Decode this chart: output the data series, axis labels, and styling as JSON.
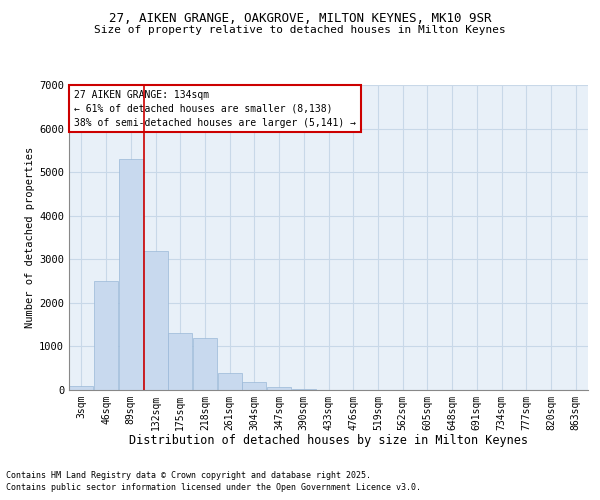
{
  "title1": "27, AIKEN GRANGE, OAKGROVE, MILTON KEYNES, MK10 9SR",
  "title2": "Size of property relative to detached houses in Milton Keynes",
  "xlabel": "Distribution of detached houses by size in Milton Keynes",
  "ylabel": "Number of detached properties",
  "bar_color": "#c8d9ee",
  "bar_edge_color": "#9ab8d8",
  "grid_color": "#c8d8e8",
  "background_color": "#e8f0f8",
  "annotation_box_color": "#cc0000",
  "vline_color": "#cc0000",
  "bins": [
    "3sqm",
    "46sqm",
    "89sqm",
    "132sqm",
    "175sqm",
    "218sqm",
    "261sqm",
    "304sqm",
    "347sqm",
    "390sqm",
    "433sqm",
    "476sqm",
    "519sqm",
    "562sqm",
    "605sqm",
    "648sqm",
    "691sqm",
    "734sqm",
    "777sqm",
    "820sqm",
    "863sqm"
  ],
  "bin_edges": [
    3,
    46,
    89,
    132,
    175,
    218,
    261,
    304,
    347,
    390,
    433,
    476,
    519,
    562,
    605,
    648,
    691,
    734,
    777,
    820,
    863
  ],
  "values": [
    90,
    2500,
    5300,
    3200,
    1300,
    1200,
    380,
    185,
    70,
    25,
    8,
    4,
    2,
    1,
    1,
    0,
    0,
    0,
    0,
    0
  ],
  "property_size": 134,
  "annotation_line1": "27 AIKEN GRANGE: 134sqm",
  "annotation_line2": "← 61% of detached houses are smaller (8,138)",
  "annotation_line3": "38% of semi-detached houses are larger (5,141) →",
  "ylim": [
    0,
    7000
  ],
  "yticks": [
    0,
    1000,
    2000,
    3000,
    4000,
    5000,
    6000,
    7000
  ],
  "footer1": "Contains HM Land Registry data © Crown copyright and database right 2025.",
  "footer2": "Contains public sector information licensed under the Open Government Licence v3.0."
}
